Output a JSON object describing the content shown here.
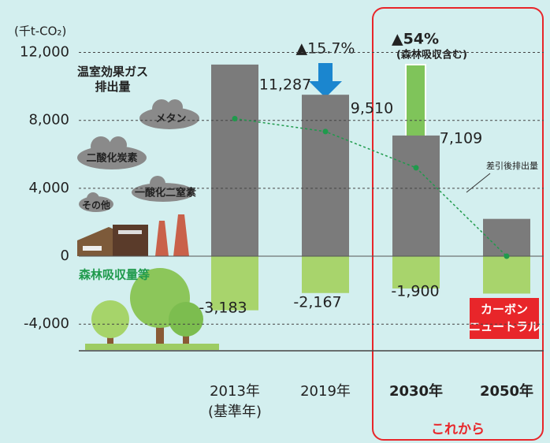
{
  "chart_data": {
    "type": "bar",
    "unit_label": "(千t-CO₂)",
    "categories": [
      "2013年",
      "2019年",
      "2030年",
      "2050年"
    ],
    "base_year_note": "(基準年)",
    "future_start_index": 2,
    "future_label": "これから",
    "ylim": [
      -5600,
      13000
    ],
    "yticks": [
      {
        "value": 12000,
        "label": "12,000"
      },
      {
        "value": 8000,
        "label": "8,000"
      },
      {
        "value": 4000,
        "label": "4,000"
      },
      0,
      {
        "value": -4000,
        "label": "-4,000"
      }
    ],
    "grid": true,
    "series": [
      {
        "name": "温室効果ガス排出量",
        "color": "#7b7b7b",
        "values": [
          11287,
          9510,
          7109,
          2200
        ],
        "value_labels": [
          "11,287",
          "9,510",
          "7,109",
          null
        ]
      },
      {
        "name": "森林吸収量等",
        "color": "#a8d46c",
        "values": [
          -3183,
          -2167,
          -1900,
          -2200
        ],
        "value_labels": [
          "-3,183",
          "-2,167",
          "-1,900",
          null
        ]
      },
      {
        "name": "差引後排出量",
        "type": "line",
        "color": "#1f9a4c",
        "values": [
          8104,
          7343,
          5209,
          0
        ]
      }
    ],
    "reduction_2019": "▲15.7%",
    "reduction_2030": "▲54%",
    "reduction_2030_note": "(森林吸収含む)",
    "gas_labels": [
      "メタン",
      "二酸化炭素",
      "一酸化二窒素",
      "その他"
    ],
    "carbon_neutral_lines": [
      "カーボン",
      "ニュートラル"
    ]
  }
}
